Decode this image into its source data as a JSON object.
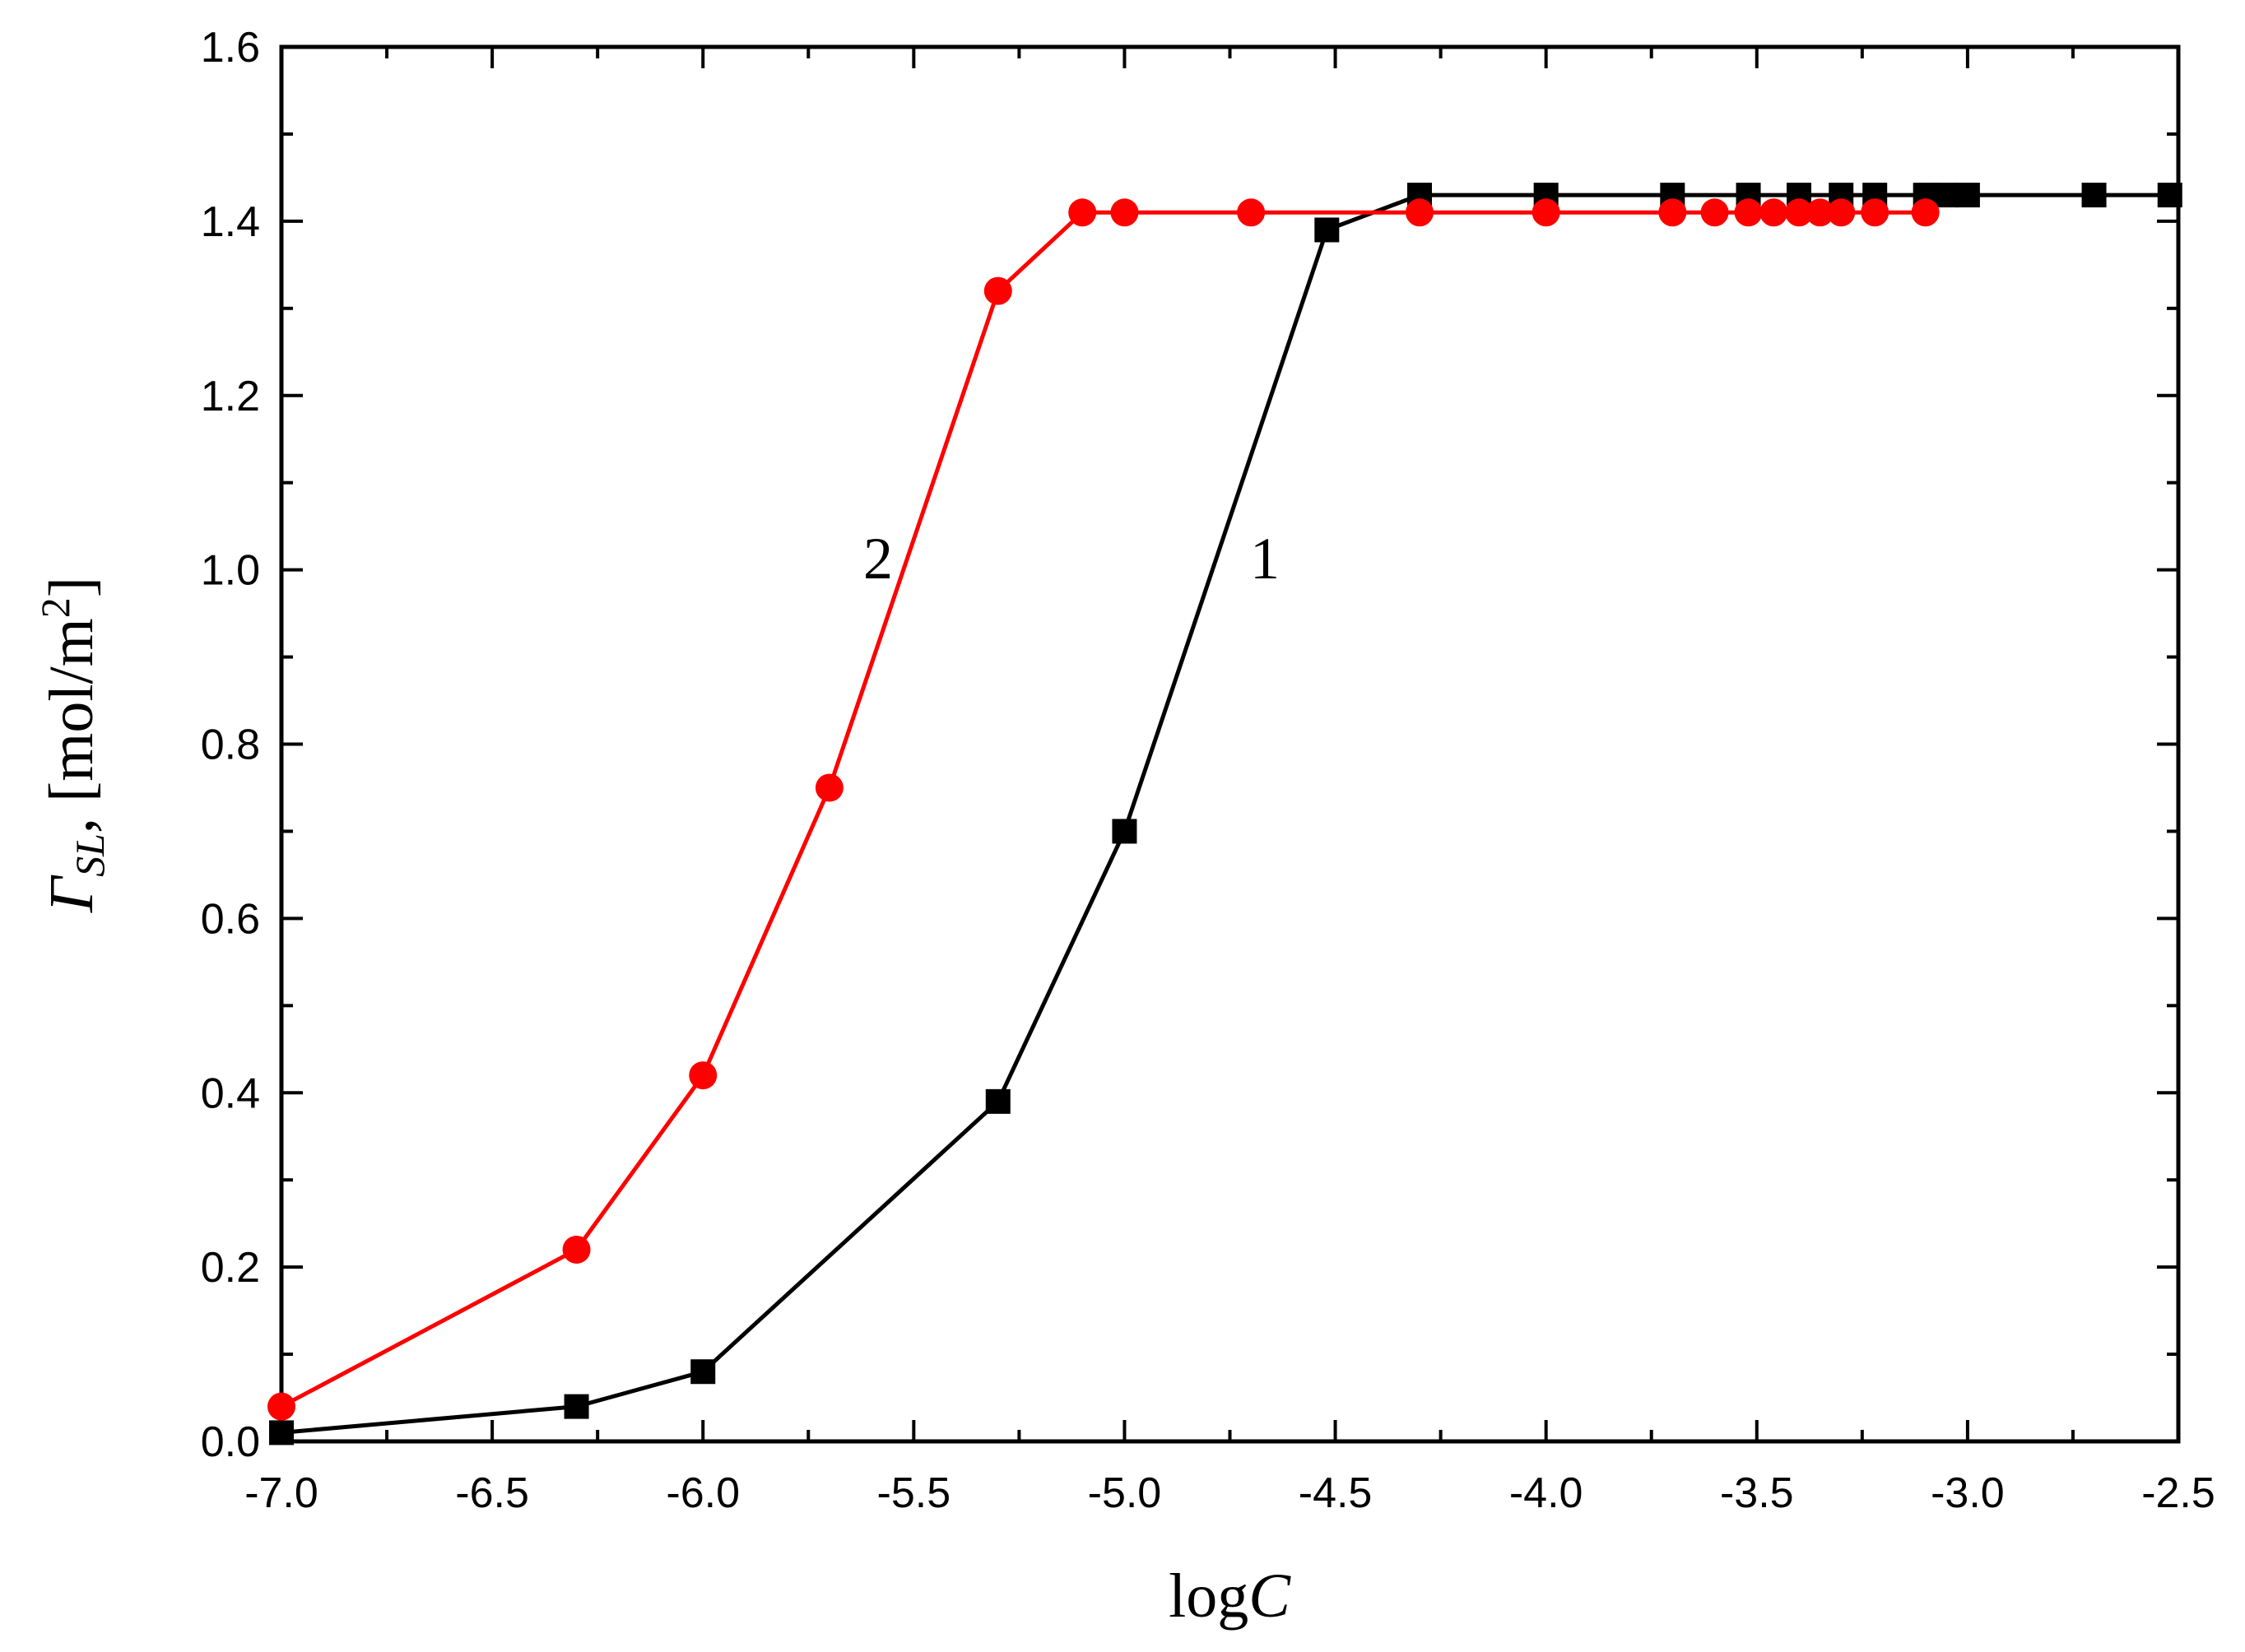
{
  "chart_data": {
    "type": "line",
    "xlabel": {
      "main": "log",
      "italic": "C"
    },
    "ylabel": {
      "symbol": "Γ",
      "subscript": "SL",
      "rest": ", [mol/m",
      "sup": "2",
      "close": "]"
    },
    "xlim": [
      -7.0,
      -2.5
    ],
    "ylim": [
      0.0,
      1.6
    ],
    "x_ticks": [
      "-7.0",
      "-6.5",
      "-6.0",
      "-5.5",
      "-5.0",
      "-4.5",
      "-4.0",
      "-3.5",
      "-3.0",
      "-2.5"
    ],
    "y_ticks": [
      "0.0",
      "0.2",
      "0.4",
      "0.6",
      "0.8",
      "1.0",
      "1.2",
      "1.4",
      "1.6"
    ],
    "grid": false,
    "legend": "none",
    "series": [
      {
        "label": "1",
        "color": "#000000",
        "marker": "square",
        "x": [
          -7.0,
          -6.3,
          -6.0,
          -5.3,
          -5.0,
          -4.52,
          -4.3,
          -4.0,
          -3.7,
          -3.52,
          -3.4,
          -3.3,
          -3.22,
          -3.1,
          -3.05,
          -3.0,
          -2.7,
          -2.52
        ],
        "y": [
          0.01,
          0.04,
          0.08,
          0.39,
          0.7,
          1.39,
          1.43,
          1.43,
          1.43,
          1.43,
          1.43,
          1.43,
          1.43,
          1.43,
          1.43,
          1.43,
          1.43,
          1.43
        ]
      },
      {
        "label": "2",
        "color": "#ff0000",
        "marker": "circle",
        "x": [
          -7.0,
          -6.3,
          -6.0,
          -5.7,
          -5.3,
          -5.1,
          -5.0,
          -4.7,
          -4.3,
          -4.0,
          -3.7,
          -3.6,
          -3.52,
          -3.46,
          -3.4,
          -3.35,
          -3.3,
          -3.22,
          -3.1
        ],
        "y": [
          0.04,
          0.22,
          0.42,
          0.75,
          1.32,
          1.41,
          1.41,
          1.41,
          1.41,
          1.41,
          1.41,
          1.41,
          1.41,
          1.41,
          1.41,
          1.41,
          1.41,
          1.41,
          1.41
        ]
      }
    ]
  }
}
